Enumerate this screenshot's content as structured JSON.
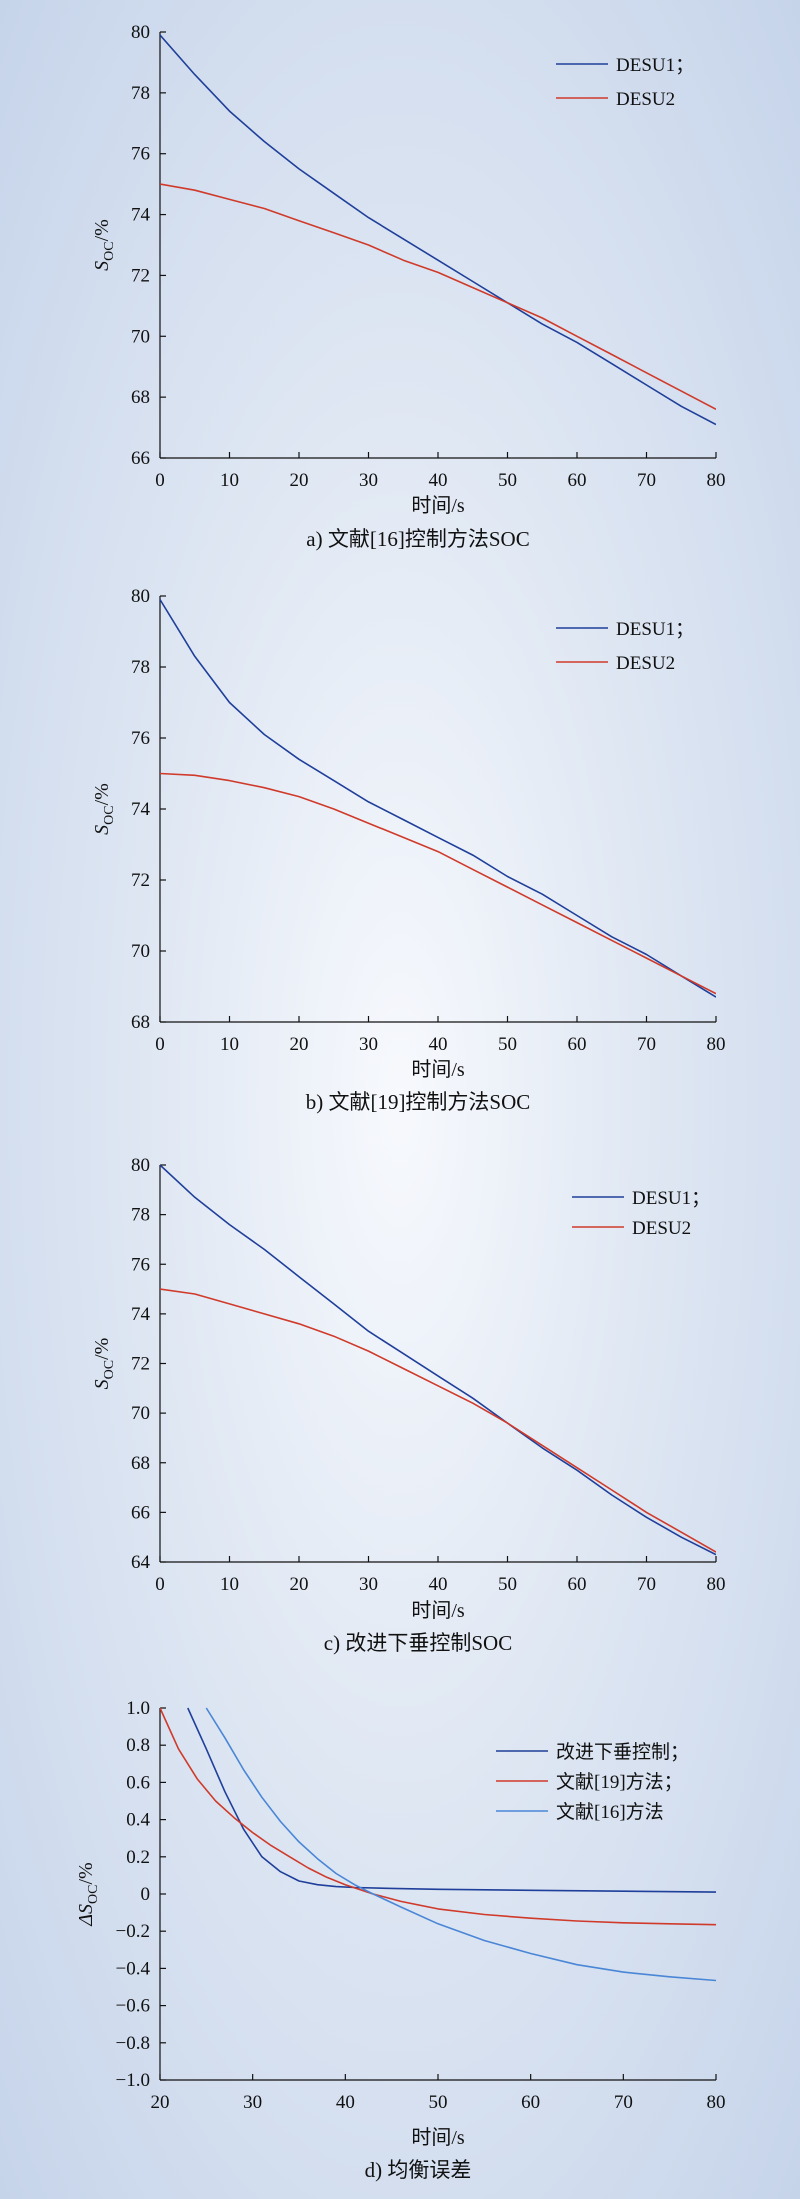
{
  "chart_data": [
    {
      "type": "line",
      "caption": "a) 文献[16]控制方法SOC",
      "xlabel": "时间/s",
      "ylabel_main": "S",
      "ylabel_sub": "OC",
      "ylabel_unit": "/%",
      "xlim": [
        0,
        80
      ],
      "ylim": [
        66,
        80
      ],
      "xticks": [
        "0",
        "10",
        "20",
        "30",
        "40",
        "50",
        "60",
        "70",
        "80"
      ],
      "yticks": [
        "66",
        "68",
        "70",
        "72",
        "74",
        "76",
        "78",
        "80"
      ],
      "colors": {
        "DESU1": "#1f3f9a",
        "DESU2": "#d03a2a"
      },
      "series": [
        {
          "name": "DESU1；",
          "x": [
            0,
            5,
            10,
            15,
            20,
            25,
            30,
            35,
            40,
            45,
            50,
            55,
            60,
            65,
            70,
            75,
            80
          ],
          "values": [
            79.9,
            78.6,
            77.4,
            76.4,
            75.5,
            74.7,
            73.9,
            73.2,
            72.5,
            71.8,
            71.1,
            70.4,
            69.8,
            69.1,
            68.4,
            67.7,
            67.1
          ]
        },
        {
          "name": "DESU2",
          "x": [
            0,
            5,
            10,
            15,
            20,
            25,
            30,
            35,
            40,
            45,
            50,
            55,
            60,
            65,
            70,
            75,
            80
          ],
          "values": [
            75.0,
            74.8,
            74.5,
            74.2,
            73.8,
            73.4,
            73.0,
            72.5,
            72.1,
            71.6,
            71.1,
            70.6,
            70.0,
            69.4,
            68.8,
            68.2,
            67.6
          ]
        }
      ]
    },
    {
      "type": "line",
      "caption": "b) 文献[19]控制方法SOC",
      "xlabel": "时间/s",
      "ylabel_main": "S",
      "ylabel_sub": "OC",
      "ylabel_unit": "/%",
      "xlim": [
        0,
        80
      ],
      "ylim": [
        68,
        80
      ],
      "xticks": [
        "0",
        "10",
        "20",
        "30",
        "40",
        "50",
        "60",
        "70",
        "80"
      ],
      "yticks": [
        "68",
        "70",
        "72",
        "74",
        "76",
        "78",
        "80"
      ],
      "colors": {
        "DESU1": "#1f3f9a",
        "DESU2": "#d03a2a"
      },
      "series": [
        {
          "name": "DESU1；",
          "x": [
            0,
            5,
            10,
            15,
            20,
            25,
            30,
            35,
            40,
            45,
            50,
            55,
            60,
            65,
            70,
            75,
            80
          ],
          "values": [
            79.9,
            78.3,
            77.0,
            76.1,
            75.4,
            74.8,
            74.2,
            73.7,
            73.2,
            72.7,
            72.1,
            71.6,
            71.0,
            70.4,
            69.9,
            69.3,
            68.7
          ]
        },
        {
          "name": "DESU2",
          "x": [
            0,
            5,
            10,
            15,
            20,
            25,
            30,
            35,
            40,
            45,
            50,
            55,
            60,
            65,
            70,
            75,
            80
          ],
          "values": [
            75.0,
            74.95,
            74.8,
            74.6,
            74.35,
            74.0,
            73.6,
            73.2,
            72.8,
            72.3,
            71.8,
            71.3,
            70.8,
            70.3,
            69.8,
            69.3,
            68.8
          ]
        }
      ]
    },
    {
      "type": "line",
      "caption": "c) 改进下垂控制SOC",
      "xlabel": "时间/s",
      "ylabel_main": "S",
      "ylabel_sub": "OC",
      "ylabel_unit": "/%",
      "xlim": [
        0,
        80
      ],
      "ylim": [
        64,
        80
      ],
      "xticks": [
        "0",
        "10",
        "20",
        "30",
        "40",
        "50",
        "60",
        "70",
        "80"
      ],
      "yticks": [
        "64",
        "66",
        "68",
        "70",
        "72",
        "74",
        "76",
        "78",
        "80"
      ],
      "colors": {
        "DESU1": "#1f3f9a",
        "DESU2": "#d03a2a"
      },
      "series": [
        {
          "name": "DESU1；",
          "x": [
            0,
            5,
            10,
            15,
            20,
            25,
            30,
            35,
            40,
            45,
            50,
            55,
            60,
            65,
            70,
            75,
            80
          ],
          "values": [
            80.0,
            78.7,
            77.6,
            76.6,
            75.5,
            74.4,
            73.3,
            72.4,
            71.5,
            70.6,
            69.6,
            68.6,
            67.7,
            66.7,
            65.8,
            65.0,
            64.3
          ]
        },
        {
          "name": "DESU2",
          "x": [
            0,
            5,
            10,
            15,
            20,
            25,
            30,
            35,
            40,
            45,
            50,
            55,
            60,
            65,
            70,
            75,
            80
          ],
          "values": [
            75.0,
            74.8,
            74.4,
            74.0,
            73.6,
            73.1,
            72.5,
            71.8,
            71.1,
            70.4,
            69.6,
            68.7,
            67.8,
            66.9,
            66.0,
            65.2,
            64.4
          ]
        }
      ]
    },
    {
      "type": "line",
      "caption": "d) 均衡误差",
      "xlabel": "时间/s",
      "ylabel_main": "ΔS",
      "ylabel_sub": "OC",
      "ylabel_unit": "/%",
      "xlim": [
        20,
        80
      ],
      "ylim": [
        -1.0,
        1.0
      ],
      "xticks": [
        "20",
        "30",
        "40",
        "50",
        "60",
        "70",
        "80"
      ],
      "yticks": [
        "1.0",
        "0.8",
        "0.6",
        "0.4",
        "0.2",
        "0",
        "−0.2",
        "−0.4",
        "−0.6",
        "−0.8",
        "−1.0"
      ],
      "colors": {
        "s1": "#1f3f9a",
        "s2": "#d03a2a",
        "s3": "#4a86d6"
      },
      "series": [
        {
          "name": "改进下垂控制；",
          "x": [
            23,
            25,
            27,
            29,
            31,
            33,
            35,
            37,
            39,
            41,
            45,
            50,
            60,
            70,
            80
          ],
          "values": [
            1.0,
            0.78,
            0.55,
            0.35,
            0.2,
            0.12,
            0.07,
            0.05,
            0.04,
            0.035,
            0.03,
            0.025,
            0.02,
            0.015,
            0.01
          ]
        },
        {
          "name": "文献[19]方法；",
          "x": [
            20,
            22,
            24,
            26,
            28,
            30,
            32,
            34,
            36,
            38,
            40,
            43,
            46,
            50,
            55,
            60,
            65,
            70,
            75,
            80
          ],
          "values": [
            1.0,
            0.78,
            0.62,
            0.5,
            0.41,
            0.33,
            0.26,
            0.2,
            0.14,
            0.09,
            0.05,
            0.0,
            -0.04,
            -0.08,
            -0.11,
            -0.13,
            -0.145,
            -0.155,
            -0.16,
            -0.165
          ]
        },
        {
          "name": "文献[16]方法",
          "x": [
            25,
            27,
            29,
            31,
            33,
            35,
            37,
            39,
            41,
            43,
            46,
            50,
            55,
            60,
            65,
            70,
            75,
            80
          ],
          "values": [
            1.0,
            0.84,
            0.67,
            0.52,
            0.39,
            0.28,
            0.19,
            0.11,
            0.05,
            0.0,
            -0.07,
            -0.16,
            -0.25,
            -0.32,
            -0.38,
            -0.42,
            -0.445,
            -0.465
          ]
        }
      ]
    }
  ]
}
